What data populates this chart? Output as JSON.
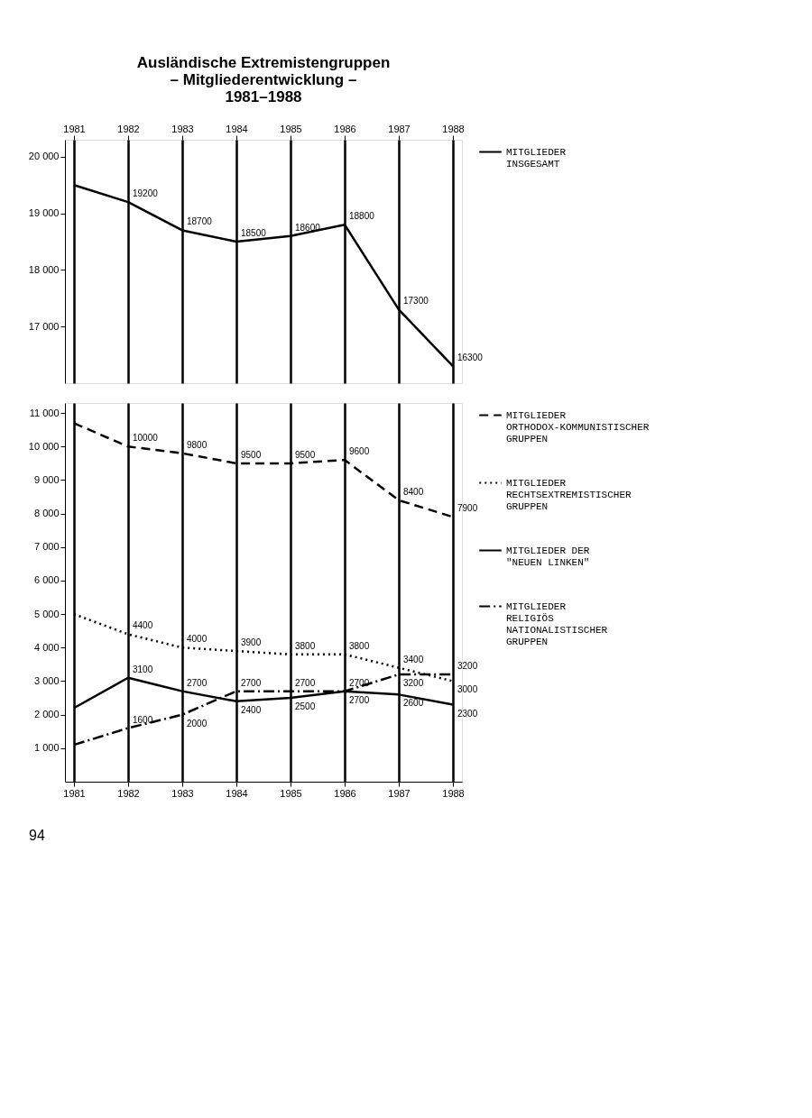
{
  "chart_data": [
    {
      "type": "line",
      "title": [
        "Ausländische Extremistengruppen",
        "– Mitgliederentwicklung –",
        "1981–1988"
      ],
      "categories": [
        "1981",
        "1982",
        "1983",
        "1984",
        "1985",
        "1986",
        "1987",
        "1988"
      ],
      "series": [
        {
          "name": "MITGLIEDER INSGESAMT",
          "color": "#000000",
          "line_style": "solid",
          "values": [
            19500,
            19200,
            18700,
            18500,
            18600,
            18800,
            17300,
            16300
          ],
          "value_labels": [
            null,
            "19200",
            "18700",
            "18500",
            "18600",
            "18800",
            "17300",
            "16300"
          ]
        }
      ],
      "ylim": [
        16000,
        20300
      ],
      "yticks": [
        {
          "value": 17000,
          "label": "17 000"
        },
        {
          "value": 18000,
          "label": "18 000"
        },
        {
          "value": 19000,
          "label": "19 000"
        },
        {
          "value": 20000,
          "label": "20 000"
        }
      ],
      "grid": "x",
      "legend": "right",
      "marker": "none"
    },
    {
      "type": "line",
      "categories": [
        "1981",
        "1982",
        "1983",
        "1984",
        "1985",
        "1986",
        "1987",
        "1988"
      ],
      "series": [
        {
          "name": "MITGLIEDER ORTHODOX-KOMMUNISTISCHER GRUPPEN",
          "color": "#000000",
          "line_style": "dashed",
          "values": [
            10700,
            10000,
            9800,
            9500,
            9500,
            9600,
            8400,
            7900
          ],
          "value_labels": [
            null,
            "10000",
            "9800",
            "9500",
            "9500",
            "9600",
            "8400",
            "7900"
          ]
        },
        {
          "name": "MITGLIEDER RECHTSEXTREMISTISCHER GRUPPEN",
          "color": "#000000",
          "line_style": "dotted",
          "values": [
            5000,
            4400,
            4000,
            3900,
            3800,
            3800,
            3400,
            3000
          ],
          "value_labels": [
            null,
            "4400",
            "4000",
            "3900",
            "3800",
            "3800",
            "3400",
            "3000"
          ]
        },
        {
          "name": "MITGLIEDER DER \"NEUEN LINKEN\"",
          "color": "#000000",
          "line_style": "solid",
          "values": [
            2200,
            3100,
            2700,
            2400,
            2500,
            2700,
            2600,
            2300
          ],
          "value_labels": [
            null,
            "3100",
            "2700",
            "2400",
            "2500",
            "2700",
            "2600",
            "2300"
          ]
        },
        {
          "name": "MITGLIEDER RELIGIÖS NATIONALISTISCHER GRUPPEN",
          "color": "#000000",
          "line_style": "dashdot",
          "values": [
            1100,
            1600,
            2000,
            2700,
            2700,
            2700,
            3200,
            3200
          ],
          "value_labels": [
            null,
            "1600",
            "2000",
            "2700",
            "2700",
            "2700",
            "3200",
            "3200"
          ]
        }
      ],
      "ylim": [
        0,
        11300
      ],
      "yticks": [
        {
          "value": 1000,
          "label": "1 000"
        },
        {
          "value": 2000,
          "label": "2 000"
        },
        {
          "value": 3000,
          "label": "3 000"
        },
        {
          "value": 4000,
          "label": "4 000"
        },
        {
          "value": 5000,
          "label": "5 000"
        },
        {
          "value": 6000,
          "label": "6 000"
        },
        {
          "value": 7000,
          "label": "7 000"
        },
        {
          "value": 8000,
          "label": "8 000"
        },
        {
          "value": 9000,
          "label": "9 000"
        },
        {
          "value": 10000,
          "label": "10 000"
        },
        {
          "value": 11000,
          "label": "11 000"
        }
      ],
      "annotations": [
        "94"
      ],
      "grid": "x",
      "legend": "right",
      "marker": "none"
    }
  ]
}
